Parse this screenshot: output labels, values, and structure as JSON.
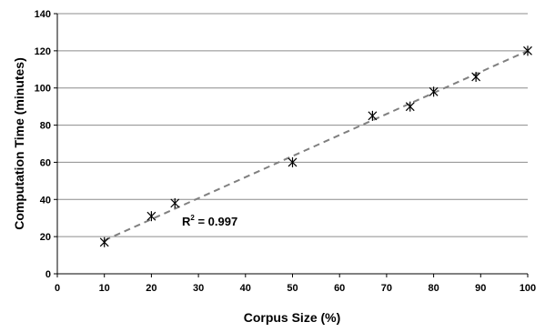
{
  "chart_data": {
    "type": "scatter",
    "title": "",
    "xlabel": "Corpus Size (%)",
    "ylabel": "Computation Time (minutes)",
    "xlim": [
      0,
      100
    ],
    "ylim": [
      0,
      140
    ],
    "xticks": [
      0,
      10,
      20,
      30,
      40,
      50,
      60,
      70,
      80,
      90,
      100
    ],
    "yticks": [
      0,
      20,
      40,
      60,
      80,
      100,
      120,
      140
    ],
    "grid": "horizontal",
    "legend": "none",
    "series": [
      {
        "marker": "asterisk",
        "color": "#000000",
        "x": [
          10,
          20,
          25,
          50,
          67,
          75,
          80,
          89,
          100
        ],
        "y": [
          17,
          31,
          38,
          60,
          85,
          90,
          98,
          106,
          120
        ]
      }
    ],
    "trendline": {
      "style": "dashed",
      "color": "#808080",
      "x": [
        10,
        100
      ],
      "y": [
        18,
        120
      ],
      "annotation_base": "R",
      "annotation_sup": "2",
      "annotation_value": " = 0.997"
    }
  }
}
